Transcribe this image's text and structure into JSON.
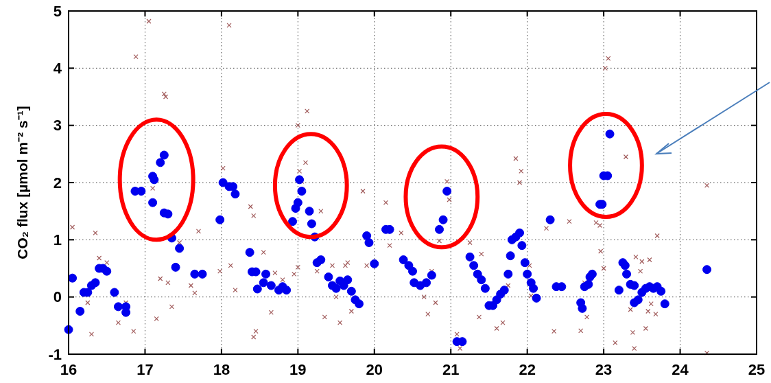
{
  "chart_data": {
    "type": "scatter",
    "ylabel": "CO₂ flux [µmol m⁻² s⁻¹]",
    "xlim": [
      16,
      25
    ],
    "ylim": [
      -1,
      5
    ],
    "xticks": [
      16,
      17,
      18,
      19,
      20,
      21,
      22,
      23,
      24,
      25
    ],
    "yticks": [
      -1,
      0,
      1,
      2,
      3,
      4,
      5
    ],
    "grid": true,
    "series": [
      {
        "color": "#a05a5a",
        "marker": "cross",
        "x": [
          16.05,
          16.25,
          16.3,
          16.35,
          16.4,
          16.5,
          16.65,
          16.75,
          16.85,
          16.88,
          17.05,
          17.1,
          17.15,
          17.2,
          17.25,
          17.27,
          17.3,
          17.35,
          17.45,
          17.6,
          17.65,
          17.7,
          17.98,
          18.02,
          18.1,
          18.12,
          18.18,
          18.38,
          18.42,
          18.55,
          18.42,
          18.45,
          18.65,
          18.7,
          18.8,
          18.95,
          19.0,
          19.0,
          19.02,
          19.05,
          19.1,
          19.12,
          19.25,
          19.3,
          19.35,
          19.45,
          19.5,
          19.55,
          19.62,
          19.65,
          19.7,
          19.85,
          19.9,
          20.15,
          20.35,
          20.2,
          20.65,
          20.7,
          20.75,
          20.8,
          20.85,
          20.95,
          20.98,
          21.08,
          21.12,
          21.25,
          21.4,
          21.37,
          21.6,
          21.68,
          21.75,
          21.9,
          21.92,
          21.85,
          22.03,
          22.05,
          22.25,
          22.35,
          22.55,
          22.7,
          22.75,
          22.78,
          22.9,
          22.95,
          22.96,
          23.0,
          23.02,
          23.06,
          23.29,
          23.15,
          23.35,
          23.38,
          23.4,
          23.42,
          23.48,
          23.5,
          23.55,
          23.6,
          23.7,
          23.62,
          23.58,
          23.68,
          24.35,
          24.35
        ],
        "values": [
          1.22,
          -0.1,
          -0.65,
          1.12,
          0.68,
          0.6,
          -0.45,
          -0.1,
          -0.6,
          4.2,
          4.82,
          1.9,
          -0.38,
          0.32,
          3.55,
          3.5,
          0.25,
          -0.17,
          0.95,
          0.2,
          0.07,
          1.15,
          0.45,
          2.25,
          4.75,
          0.55,
          0.12,
          1.58,
          1.42,
          0.78,
          -0.7,
          -0.6,
          -0.27,
          0.42,
          0.3,
          0.4,
          0.52,
          3.0,
          2.2,
          2.02,
          2.35,
          3.25,
          0.45,
          1.5,
          -0.35,
          0.55,
          0.0,
          -0.45,
          0.55,
          0.6,
          -0.25,
          1.85,
          0.55,
          1.65,
          1.12,
          0.9,
          0.0,
          -0.3,
          0.45,
          -0.1,
          0.98,
          2.02,
          1.7,
          -0.65,
          -0.9,
          0.95,
          0.75,
          -0.35,
          -0.55,
          -0.45,
          0.2,
          2.0,
          2.2,
          2.42,
          0.55,
          0.02,
          1.2,
          -0.6,
          1.32,
          -0.59,
          0.25,
          -0.35,
          1.3,
          1.25,
          0.8,
          0.5,
          4.0,
          4.17,
          2.45,
          -0.8,
          -0.22,
          -0.62,
          -0.9,
          0.7,
          0.45,
          0.62,
          -0.55,
          0.65,
          1.07,
          -0.12,
          -0.25,
          -0.3,
          -0.98,
          1.95
        ]
      },
      {
        "color": "#0000ee",
        "marker": "circle",
        "x": [
          16.0,
          16.05,
          16.15,
          16.2,
          16.25,
          16.3,
          16.35,
          16.4,
          16.45,
          16.5,
          16.6,
          16.65,
          16.75,
          16.75,
          16.87,
          16.95,
          17.1,
          17.12,
          17.2,
          17.25,
          17.1,
          17.25,
          17.3,
          17.35,
          17.45,
          17.4,
          17.65,
          17.75,
          17.98,
          18.02,
          18.1,
          18.15,
          18.18,
          18.37,
          18.4,
          18.45,
          18.47,
          18.58,
          18.55,
          18.65,
          18.75,
          18.8,
          18.85,
          18.93,
          18.97,
          19.0,
          19.02,
          19.05,
          19.15,
          19.18,
          19.22,
          19.25,
          19.3,
          19.4,
          19.45,
          19.5,
          19.55,
          19.6,
          19.65,
          19.7,
          19.75,
          19.8,
          19.9,
          19.93,
          20.0,
          20.15,
          20.2,
          20.38,
          20.45,
          20.5,
          20.52,
          20.6,
          20.68,
          20.75,
          20.85,
          20.9,
          20.95,
          21.08,
          21.15,
          21.25,
          21.3,
          21.35,
          21.4,
          21.45,
          21.5,
          21.55,
          21.6,
          21.65,
          21.7,
          21.75,
          21.78,
          21.8,
          21.85,
          21.9,
          21.93,
          21.97,
          22.0,
          22.05,
          22.08,
          22.12,
          22.3,
          22.38,
          22.45,
          22.7,
          22.72,
          22.75,
          22.8,
          22.82,
          22.85,
          22.95,
          22.98,
          23.0,
          23.05,
          23.08,
          23.2,
          23.25,
          23.28,
          23.3,
          23.35,
          23.4,
          23.4,
          23.45,
          23.5,
          23.55,
          23.6,
          23.65,
          23.7,
          23.75,
          23.8,
          24.35
        ],
        "values": [
          -0.57,
          0.33,
          -0.25,
          0.08,
          0.08,
          0.2,
          0.25,
          0.5,
          0.5,
          0.45,
          0.08,
          -0.17,
          -0.17,
          -0.27,
          1.85,
          1.85,
          2.11,
          2.05,
          2.35,
          2.48,
          1.65,
          1.47,
          1.45,
          1.03,
          0.85,
          0.52,
          0.4,
          0.4,
          1.35,
          2.0,
          1.93,
          1.93,
          1.8,
          0.78,
          0.44,
          0.44,
          0.14,
          0.4,
          0.25,
          0.2,
          0.12,
          0.18,
          0.12,
          1.32,
          1.55,
          1.65,
          2.05,
          1.85,
          1.5,
          1.28,
          1.05,
          0.6,
          0.65,
          0.35,
          0.2,
          0.15,
          0.28,
          0.2,
          0.3,
          0.1,
          -0.05,
          -0.12,
          1.07,
          0.95,
          0.58,
          1.18,
          1.18,
          0.65,
          0.55,
          0.45,
          0.25,
          0.2,
          0.25,
          0.38,
          1.18,
          1.35,
          1.85,
          -0.78,
          -0.78,
          0.7,
          0.55,
          0.4,
          0.3,
          0.15,
          -0.15,
          -0.15,
          -0.05,
          0.05,
          0.12,
          0.4,
          0.72,
          1.0,
          1.05,
          1.12,
          0.9,
          0.6,
          0.4,
          0.25,
          0.15,
          -0.02,
          1.35,
          0.18,
          0.18,
          -0.1,
          -0.2,
          0.18,
          0.22,
          0.35,
          0.4,
          1.62,
          1.62,
          2.12,
          2.12,
          2.85,
          0.12,
          0.6,
          0.55,
          0.4,
          0.22,
          0.2,
          -0.1,
          -0.05,
          0.08,
          0.15,
          0.18,
          0.15,
          0.18,
          0.1,
          -0.12,
          0.48
        ]
      }
    ]
  }
}
